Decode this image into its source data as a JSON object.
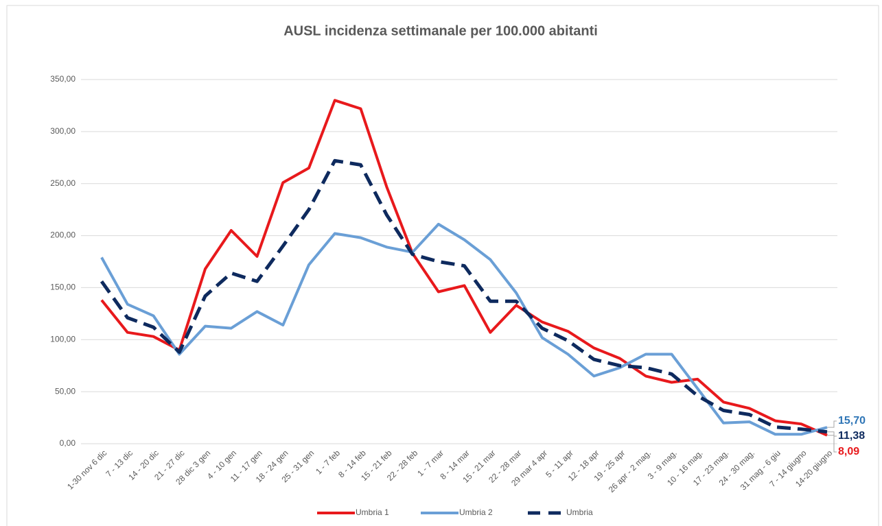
{
  "chart_data": {
    "type": "line",
    "title": "AUSL incidenza settimanale per 100.000 abitanti",
    "categories": [
      "1-30 nov 6 dic",
      "7 - 13 dic",
      "14 - 20 dic",
      "21 - 27 dic",
      "28 dic 3 gen",
      "4 - 10 gen",
      "11 - 17 gen",
      "18 - 24 gen",
      "25 - 31 gen",
      "1 - 7 feb",
      "8 - 14 feb",
      "15 - 21 feb",
      "22 - 28 feb",
      "1 - 7 mar",
      "8 - 14 mar",
      "15 - 21 mar",
      "22 - 28 mar",
      "29 mar 4 apr",
      "5 - 11 apr",
      "12 - 18 apr",
      "19 - 25 apr",
      "26 apr - 2 mag.",
      "3 - 9 mag.",
      "10 - 16 mag.",
      "17 - 23 mag.",
      "24 - 30 mag.",
      "31 mag - 6 giu",
      "7 - 14 giugno",
      "14-20 giugno"
    ],
    "series": [
      {
        "name": "Umbria 1",
        "color": "#e8191c",
        "dashed": false,
        "label_color": "#e8191c",
        "values": [
          138,
          107,
          103,
          90,
          168,
          205,
          180,
          251,
          265,
          330,
          322,
          247,
          183,
          146,
          152,
          107,
          133,
          117,
          108,
          92,
          82,
          65,
          59,
          62,
          40,
          34,
          22,
          19,
          8.09
        ],
        "value_labels": [
          null,
          null,
          null,
          null,
          null,
          null,
          null,
          null,
          null,
          null,
          null,
          null,
          null,
          null,
          null,
          null,
          null,
          null,
          null,
          null,
          null,
          null,
          null,
          null,
          null,
          null,
          null,
          null,
          "8,09"
        ]
      },
      {
        "name": "Umbria 2",
        "color": "#6a9fd6",
        "dashed": false,
        "label_color": "#2e75b6",
        "values": [
          179,
          134,
          123,
          86,
          113,
          111,
          127,
          114,
          172,
          202,
          198,
          189,
          184,
          211,
          196,
          177,
          145,
          102,
          86,
          65,
          73,
          86,
          86,
          53,
          20,
          21,
          9,
          9,
          15.7
        ],
        "value_labels": [
          null,
          null,
          null,
          null,
          null,
          null,
          null,
          null,
          null,
          null,
          null,
          null,
          null,
          null,
          null,
          null,
          null,
          null,
          null,
          null,
          null,
          null,
          null,
          null,
          null,
          null,
          null,
          null,
          "15,70"
        ]
      },
      {
        "name": "Umbria",
        "color": "#0e2a5e",
        "dashed": true,
        "label_color": "#0e2a5e",
        "values": [
          156,
          121,
          112,
          88,
          142,
          164,
          156,
          190,
          225,
          272,
          268,
          220,
          182,
          175,
          171,
          137,
          137,
          111,
          99,
          81,
          75,
          73,
          67,
          46,
          32,
          28,
          16,
          14,
          11.38
        ],
        "value_labels": [
          null,
          null,
          null,
          null,
          null,
          null,
          null,
          null,
          null,
          null,
          null,
          null,
          null,
          null,
          null,
          null,
          null,
          null,
          null,
          null,
          null,
          null,
          null,
          null,
          null,
          null,
          null,
          null,
          "11,38"
        ]
      }
    ],
    "ylim": [
      0,
      350
    ],
    "yticks": [
      {
        "value": 0,
        "label": "0,00"
      },
      {
        "value": 50,
        "label": "50,00"
      },
      {
        "value": 100,
        "label": "100,00"
      },
      {
        "value": 150,
        "label": "150,00"
      },
      {
        "value": 200,
        "label": "200,00"
      },
      {
        "value": 250,
        "label": "250,00"
      },
      {
        "value": 300,
        "label": "300,00"
      },
      {
        "value": 350,
        "label": "350,00"
      }
    ],
    "grid": true,
    "legend": "bottom"
  }
}
